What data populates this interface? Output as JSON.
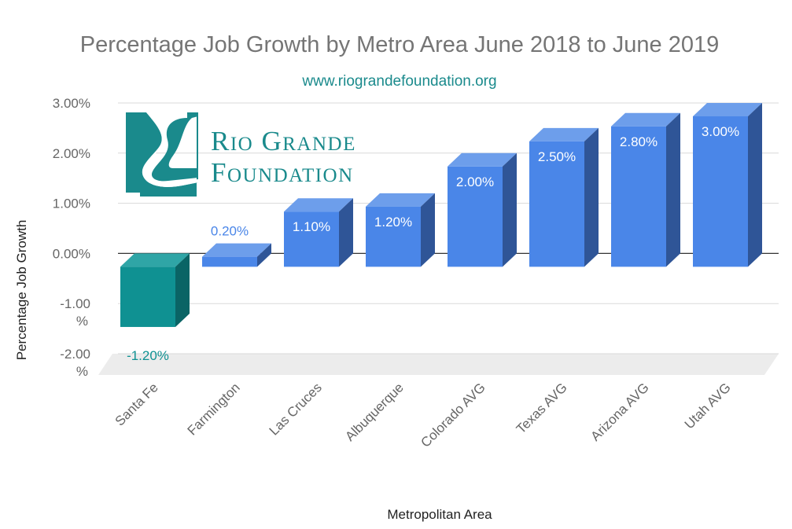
{
  "colors": {
    "positive_front": "#4a86e8",
    "positive_top": "#6d9eeb",
    "positive_side": "#2f5597",
    "negative_front": "#0f9192",
    "negative_top": "#2fa5a6",
    "negative_side": "#0a6465",
    "logo": "#1a8a8c",
    "grid": "#d9d9d9",
    "floor": "#ececec",
    "title": "#757575",
    "subtitle": "#1a8a8c",
    "axis_text": "#666666"
  },
  "logo": {
    "line1": "Rio Grande",
    "line2": "Foundation"
  },
  "chart_data": {
    "type": "bar",
    "title": "Percentage Job Growth by Metro Area June 2018 to June 2019",
    "subtitle": "www.riograndefoundation.org",
    "xlabel": "Metropolitan Area",
    "ylabel": "Percentage Job Growth",
    "categories": [
      "Santa Fe",
      "Farmington",
      "Las Cruces",
      "Albuquerque",
      "Colorado AVG",
      "Texas AVG",
      "Arizona AVG",
      "Utah AVG"
    ],
    "values": [
      -1.2,
      0.2,
      1.1,
      1.2,
      2.0,
      2.5,
      2.8,
      3.0
    ],
    "data_labels": [
      "-1.20%",
      "0.20%",
      "1.10%",
      "1.20%",
      "2.00%",
      "2.50%",
      "2.80%",
      "3.00%"
    ],
    "ylim": [
      -2,
      3
    ],
    "yticks": [
      {
        "value": 3,
        "label": "3.00%"
      },
      {
        "value": 2,
        "label": "2.00%"
      },
      {
        "value": 1,
        "label": "1.00%"
      },
      {
        "value": 0,
        "label": "0.00%"
      },
      {
        "value": -1,
        "label": "-1.00 %"
      },
      {
        "value": -2,
        "label": "-2.00 %"
      }
    ],
    "grid": true,
    "legend": "none"
  }
}
